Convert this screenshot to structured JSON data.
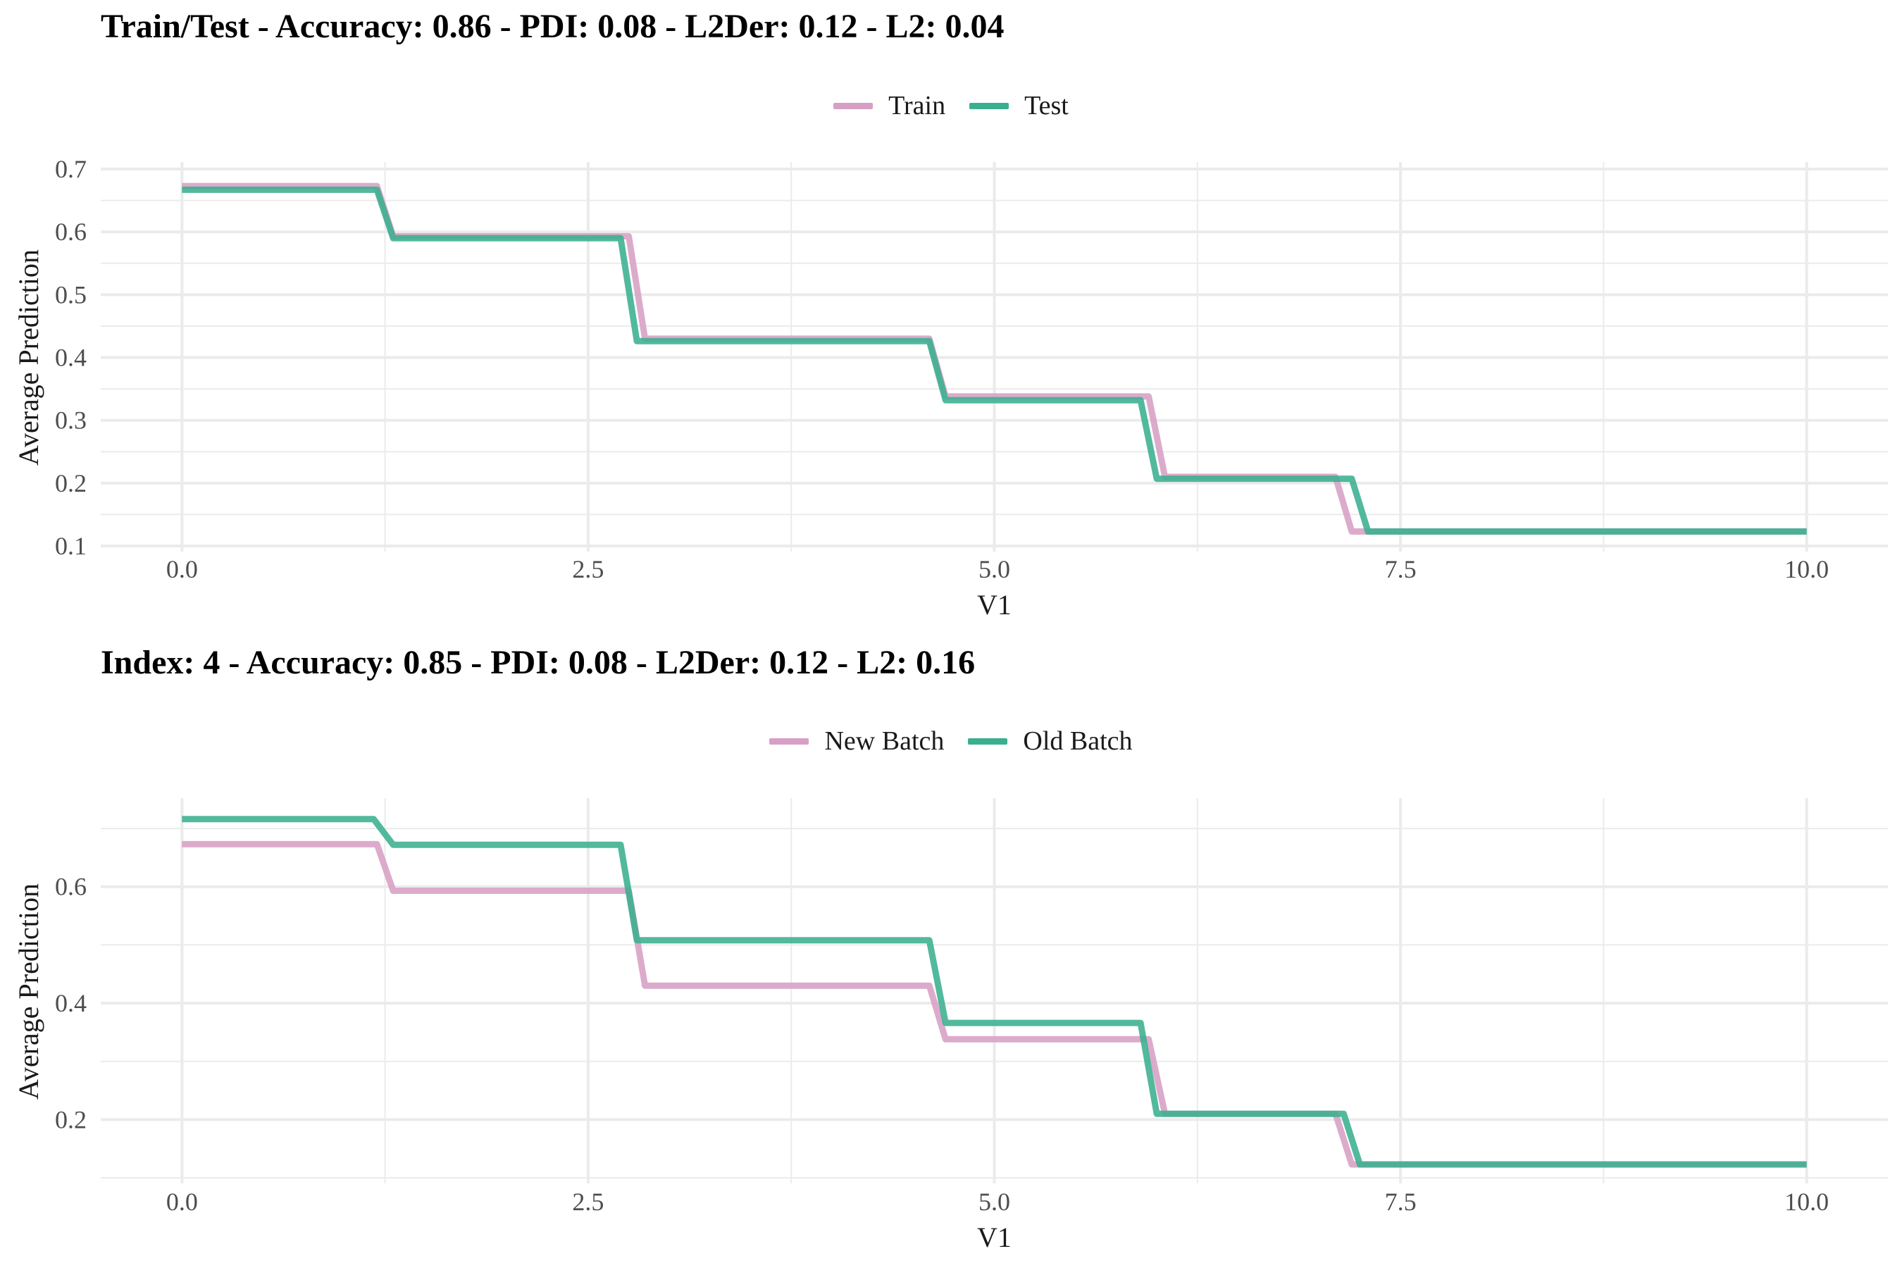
{
  "colors": {
    "series_a": "#d79fc4",
    "series_b": "#3aaf8f",
    "grid": "#ebebeb",
    "text": "#4d4d4d"
  },
  "chart_data": [
    {
      "type": "line",
      "title": "Train/Test - Accuracy: 0.86 - PDI: 0.08 - L2Der: 0.12 - L2: 0.04",
      "xlabel": "V1",
      "ylabel": "Average Prediction",
      "xlim": [
        -0.5,
        10.5
      ],
      "ylim": [
        0.1,
        0.7
      ],
      "xticks": [
        0,
        2.5,
        5,
        7.5,
        10
      ],
      "xtick_labels": [
        "0.0",
        "2.5",
        "5.0",
        "7.5",
        "10.0"
      ],
      "yticks": [
        0.1,
        0.2,
        0.3,
        0.4,
        0.5,
        0.6,
        0.7
      ],
      "ytick_labels": [
        "0.1",
        "0.2",
        "0.3",
        "0.4",
        "0.5",
        "0.6",
        "0.7"
      ],
      "grid": true,
      "legend": "top",
      "series": [
        {
          "name": "Train",
          "color": "#d79fc4",
          "x": [
            0,
            1.2,
            1.3,
            2.75,
            2.85,
            4.6,
            4.7,
            5.95,
            6.05,
            7.1,
            7.2,
            10
          ],
          "y": [
            0.673,
            0.673,
            0.593,
            0.593,
            0.43,
            0.43,
            0.338,
            0.338,
            0.21,
            0.21,
            0.123,
            0.123
          ]
        },
        {
          "name": "Test",
          "color": "#3aaf8f",
          "x": [
            0,
            1.2,
            1.3,
            2.7,
            2.8,
            4.6,
            4.7,
            5.9,
            6.0,
            7.2,
            7.3,
            10
          ],
          "y": [
            0.667,
            0.667,
            0.59,
            0.59,
            0.426,
            0.426,
            0.332,
            0.332,
            0.207,
            0.207,
            0.123,
            0.123
          ]
        }
      ]
    },
    {
      "type": "line",
      "title": "Index: 4 - Accuracy: 0.85 - PDI: 0.08 - L2Der: 0.12 - L2: 0.16",
      "xlabel": "V1",
      "ylabel": "Average Prediction",
      "xlim": [
        -0.5,
        10.5
      ],
      "ylim": [
        0.1,
        0.74
      ],
      "xticks": [
        0,
        2.5,
        5,
        7.5,
        10
      ],
      "xtick_labels": [
        "0.0",
        "2.5",
        "5.0",
        "7.5",
        "10.0"
      ],
      "yticks": [
        0.2,
        0.4,
        0.6
      ],
      "ytick_labels": [
        "0.2",
        "0.4",
        "0.6"
      ],
      "grid": true,
      "legend": "top",
      "series": [
        {
          "name": "New Batch",
          "color": "#d79fc4",
          "x": [
            0,
            1.2,
            1.3,
            2.75,
            2.85,
            4.6,
            4.7,
            5.95,
            6.05,
            7.1,
            7.2,
            10
          ],
          "y": [
            0.673,
            0.673,
            0.593,
            0.593,
            0.43,
            0.43,
            0.338,
            0.338,
            0.21,
            0.21,
            0.123,
            0.123
          ]
        },
        {
          "name": "Old Batch",
          "color": "#3aaf8f",
          "x": [
            0,
            1.18,
            1.3,
            2.7,
            2.8,
            4.6,
            4.7,
            5.9,
            6.0,
            7.15,
            7.25,
            10
          ],
          "y": [
            0.716,
            0.716,
            0.672,
            0.672,
            0.508,
            0.508,
            0.366,
            0.366,
            0.21,
            0.21,
            0.123,
            0.123
          ]
        }
      ]
    }
  ]
}
